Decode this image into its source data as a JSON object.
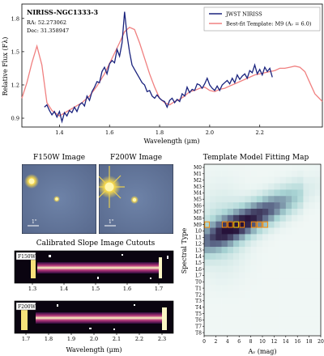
{
  "chart_data": [
    {
      "type": "line",
      "title": "NIRISS-NGC1333-3",
      "annotations": [
        "RA: 52.273062",
        "Dec: 31.358947"
      ],
      "xlabel": "Wavelength (μm)",
      "ylabel": "Relative Flux (Fλ)",
      "xlim": [
        1.25,
        2.45
      ],
      "ylim": [
        0.82,
        1.93
      ],
      "xticks": [
        1.4,
        1.6,
        1.8,
        2.0,
        2.2
      ],
      "yticks": [
        0.9,
        1.2,
        1.5,
        1.8
      ],
      "legend_position": "top-right",
      "series": [
        {
          "name": "JWST NIRISS",
          "color": "#1a237e",
          "x": [
            1.34,
            1.35,
            1.36,
            1.37,
            1.38,
            1.39,
            1.4,
            1.41,
            1.42,
            1.43,
            1.44,
            1.45,
            1.46,
            1.47,
            1.48,
            1.49,
            1.5,
            1.51,
            1.52,
            1.53,
            1.54,
            1.55,
            1.56,
            1.57,
            1.58,
            1.59,
            1.6,
            1.61,
            1.62,
            1.63,
            1.64,
            1.65,
            1.66,
            1.67,
            1.68,
            1.69,
            1.7,
            1.71,
            1.72,
            1.73,
            1.74,
            1.75,
            1.76,
            1.77,
            1.78,
            1.79,
            1.8,
            1.81,
            1.82,
            1.83,
            1.84,
            1.85,
            1.86,
            1.87,
            1.88,
            1.89,
            1.9,
            1.91,
            1.92,
            1.93,
            1.94,
            1.95,
            1.96,
            1.97,
            1.98,
            1.99,
            2.0,
            2.01,
            2.02,
            2.03,
            2.04,
            2.05,
            2.06,
            2.07,
            2.08,
            2.09,
            2.1,
            2.11,
            2.12,
            2.13,
            2.14,
            2.15,
            2.16,
            2.17,
            2.18,
            2.19,
            2.2,
            2.21,
            2.22,
            2.23,
            2.24,
            2.25
          ],
          "y": [
            1.0,
            1.02,
            0.97,
            0.93,
            0.96,
            0.91,
            0.96,
            0.87,
            0.95,
            0.92,
            0.97,
            0.95,
            1.0,
            0.96,
            1.02,
            1.04,
            1.01,
            1.1,
            1.06,
            1.14,
            1.18,
            1.23,
            1.22,
            1.32,
            1.36,
            1.3,
            1.39,
            1.42,
            1.4,
            1.52,
            1.46,
            1.58,
            1.86,
            1.65,
            1.5,
            1.38,
            1.34,
            1.3,
            1.26,
            1.22,
            1.2,
            1.14,
            1.15,
            1.1,
            1.08,
            1.11,
            1.08,
            1.06,
            1.05,
            1.0,
            1.06,
            1.08,
            1.04,
            1.07,
            1.05,
            1.12,
            1.1,
            1.18,
            1.13,
            1.16,
            1.15,
            1.21,
            1.2,
            1.17,
            1.21,
            1.26,
            1.2,
            1.17,
            1.15,
            1.19,
            1.15,
            1.2,
            1.22,
            1.24,
            1.21,
            1.26,
            1.22,
            1.29,
            1.25,
            1.28,
            1.3,
            1.26,
            1.33,
            1.31,
            1.38,
            1.3,
            1.34,
            1.29,
            1.36,
            1.32,
            1.35,
            1.27
          ]
        },
        {
          "name": "Best-fit Template: M9 (Aᵥ = 6.0)",
          "color": "#f08080",
          "x": [
            1.25,
            1.27,
            1.29,
            1.31,
            1.33,
            1.35,
            1.37,
            1.4,
            1.43,
            1.46,
            1.49,
            1.52,
            1.55,
            1.58,
            1.61,
            1.64,
            1.66,
            1.68,
            1.7,
            1.72,
            1.74,
            1.76,
            1.78,
            1.8,
            1.82,
            1.84,
            1.86,
            1.88,
            1.9,
            1.92,
            1.94,
            1.96,
            1.98,
            2.0,
            2.02,
            2.04,
            2.06,
            2.08,
            2.1,
            2.12,
            2.14,
            2.16,
            2.18,
            2.2,
            2.22,
            2.24,
            2.26,
            2.28,
            2.3,
            2.32,
            2.34,
            2.36,
            2.38,
            2.4,
            2.42,
            2.45
          ],
          "y": [
            1.08,
            1.22,
            1.4,
            1.55,
            1.38,
            1.04,
            0.97,
            0.92,
            0.96,
            1.0,
            1.04,
            1.1,
            1.19,
            1.3,
            1.44,
            1.58,
            1.68,
            1.72,
            1.7,
            1.58,
            1.44,
            1.3,
            1.18,
            1.08,
            1.04,
            1.02,
            1.05,
            1.07,
            1.1,
            1.14,
            1.15,
            1.17,
            1.18,
            1.15,
            1.14,
            1.16,
            1.17,
            1.19,
            1.21,
            1.23,
            1.25,
            1.27,
            1.29,
            1.3,
            1.31,
            1.32,
            1.33,
            1.35,
            1.35,
            1.36,
            1.37,
            1.36,
            1.32,
            1.22,
            1.12,
            1.05
          ]
        }
      ]
    },
    {
      "type": "image",
      "title": "F150W Image",
      "scale_label": "1\""
    },
    {
      "type": "image",
      "title": "F200W Image",
      "scale_label": "1\""
    },
    {
      "type": "heatmap",
      "title": "Template Model Fitting Map",
      "xlabel": "Aᵥ (mag)",
      "ylabel": "Spectral Type",
      "x_ticks": [
        0,
        2,
        4,
        6,
        8,
        10,
        12,
        14,
        16,
        18,
        20
      ],
      "y_categories": [
        "M0",
        "M1",
        "M2",
        "M3",
        "M4",
        "M5",
        "M6",
        "M7",
        "M8",
        "M9",
        "L0",
        "L1",
        "L2",
        "L3",
        "L4",
        "L5",
        "L6",
        "L7",
        "T0",
        "T1",
        "T2",
        "T3",
        "T4",
        "T5",
        "T6",
        "T7",
        "T8"
      ],
      "best_fit": {
        "type": "M9",
        "av": 6.0
      }
    },
    {
      "type": "image",
      "title": "Calibrated Slope Image Cutouts",
      "xlabel": "Wavelength (μm)",
      "panels": [
        {
          "label": "F150W",
          "xticks": [
            "1.3",
            "1.4",
            "1.5",
            "1.6",
            "1.7"
          ]
        },
        {
          "label": "F200W",
          "xticks": [
            "1.7",
            "1.8",
            "1.9",
            "2.0",
            "2.1",
            "2.2",
            "2.3"
          ]
        }
      ]
    }
  ]
}
